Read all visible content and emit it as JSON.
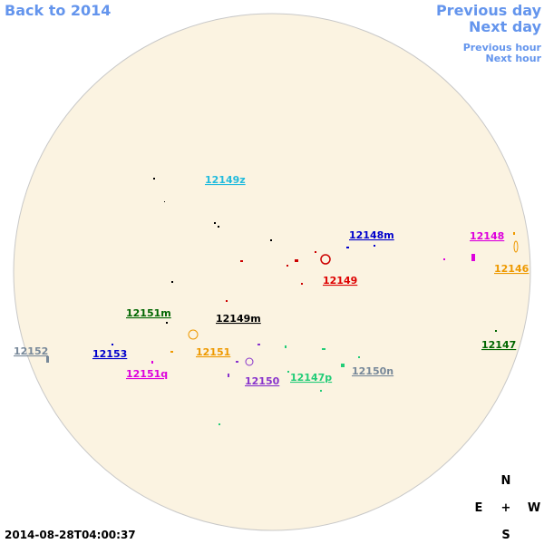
{
  "nav": {
    "back": "Back to 2014",
    "previous_day": "Previous day",
    "next_day": "Next day",
    "previous_hour": "Previous hour",
    "next_hour": "Next hour"
  },
  "regions": [
    {
      "label": "12149z",
      "color": "#22bbdd"
    },
    {
      "label": "12148m",
      "color": "#0000cc"
    },
    {
      "label": "12148",
      "color": "#dd00dd"
    },
    {
      "label": "12146",
      "color": "#ee9900"
    },
    {
      "label": "12149",
      "color": "#dd0000"
    },
    {
      "label": "12151m",
      "color": "#006600"
    },
    {
      "label": "12149m",
      "color": "#000000"
    },
    {
      "label": "12147",
      "color": "#006600"
    },
    {
      "label": "12152",
      "color": "#778899"
    },
    {
      "label": "12153",
      "color": "#0000cc"
    },
    {
      "label": "12151",
      "color": "#ee9900"
    },
    {
      "label": "12151q",
      "color": "#dd00dd"
    },
    {
      "label": "12150",
      "color": "#8833cc"
    },
    {
      "label": "12147p",
      "color": "#22cc77"
    },
    {
      "label": "12150n",
      "color": "#778899"
    }
  ],
  "compass": {
    "north": "N",
    "east": "E",
    "center": "+",
    "west": "W",
    "south": "S"
  },
  "timestamp": "2014-08-28T04:00:37"
}
